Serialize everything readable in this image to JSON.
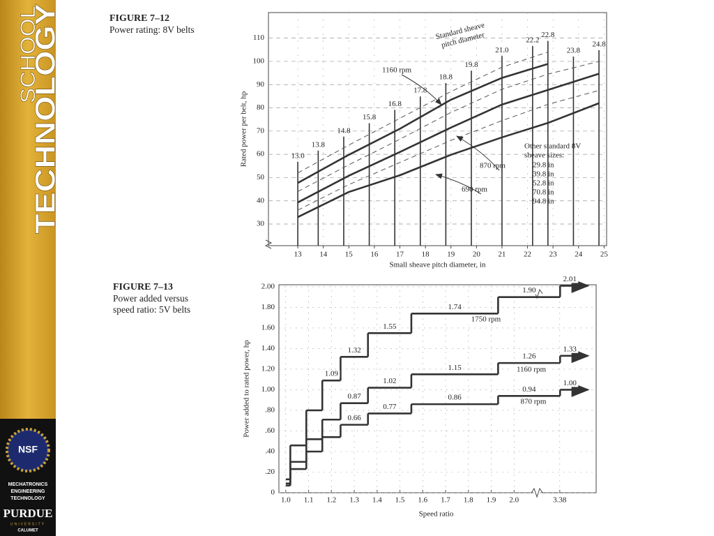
{
  "sidebar": {
    "school": "SCHOOL",
    "technology": "TECHNOLOGY",
    "nsf": "NSF",
    "program": [
      "MECHATRONICS",
      "ENGINEERING",
      "TECHNOLOGY"
    ],
    "university": "PURDUE",
    "university_sub": "UNIVERSITY",
    "campus": "CALUMET"
  },
  "chart_data": [
    {
      "type": "line",
      "title": "FIGURE 7–12",
      "subtitle": [
        "Power rating: 8V belts"
      ],
      "x_label": "Small sheave pitch diameter, in",
      "y_label": "Rated power per belt, hp",
      "xlim": [
        11.85,
        25.1
      ],
      "ylim": [
        20.7,
        121
      ],
      "xticks": [
        13,
        14,
        15,
        16,
        17,
        18,
        19,
        20,
        21,
        22,
        23,
        24,
        25
      ],
      "yticks": [
        30,
        40,
        50,
        60,
        70,
        80,
        90,
        100,
        110
      ],
      "grid": true,
      "y_axis_break": true,
      "x": [
        13,
        15,
        17,
        19,
        21,
        22.8,
        24.8
      ],
      "series": [
        {
          "name": "1160 rpm",
          "color": "#333333",
          "dash": false,
          "values": [
            47.7,
            59.8,
            71,
            83.5,
            92.9,
            98.9,
            null
          ]
        },
        {
          "name": "870 rpm",
          "color": "#333333",
          "dash": false,
          "values": [
            39.3,
            50.8,
            61,
            71.5,
            81.4,
            87.7,
            94.7
          ]
        },
        {
          "name": "690 rpm",
          "color": "#333333",
          "dash": false,
          "values": [
            33,
            43.8,
            51,
            59.8,
            67.3,
            73.5,
            82
          ]
        },
        {
          "color": "#555555",
          "dash": true,
          "values": [
            52,
            64,
            75.5,
            87,
            97.5,
            104,
            null
          ]
        },
        {
          "color": "#555555",
          "dash": true,
          "values": [
            44,
            55.5,
            66.5,
            78,
            88,
            94.5,
            100
          ]
        },
        {
          "color": "#555555",
          "dash": true,
          "values": [
            36,
            47,
            56.5,
            66,
            74.5,
            81.5,
            87.5
          ]
        }
      ],
      "standard_diameters": [
        {
          "value": 13,
          "label": "13.0"
        },
        13.8,
        14.8,
        15.8,
        16.8,
        17.8,
        18.8,
        19.8,
        {
          "value": 21,
          "label": "21.0"
        },
        22.2,
        22.8,
        23.8,
        24.8
      ],
      "annotations": {
        "standard_label": [
          "Standard sheave",
          "pitch diameter"
        ],
        "other_sizes_title": [
          "Other standard 8V",
          "sheave sizes:"
        ],
        "other_sizes": [
          "29.8 in",
          "39.8 in",
          "52.8 in",
          "70.8 in",
          "94.8 in"
        ]
      }
    },
    {
      "type": "step",
      "title": "FIGURE 7–13",
      "subtitle": [
        "Power added versus",
        "speed ratio: 5V belts"
      ],
      "x_label": "Speed ratio",
      "y_label": "Power added to rated power, hp",
      "xlim": [
        0.97,
        4.48
      ],
      "ylim": [
        0,
        2.02
      ],
      "x_axis_break": true,
      "xticks": [
        {
          "value": 1,
          "label": "1.0"
        },
        1.1,
        1.2,
        1.3,
        1.4,
        1.5,
        1.6,
        1.7,
        1.8,
        1.9,
        {
          "value": 2,
          "label": "2.0"
        },
        3.38
      ],
      "yticks": [
        0,
        {
          "value": 0.2,
          "label": ".20"
        },
        {
          "value": 0.4,
          "label": ".40"
        },
        {
          "value": 0.6,
          "label": ".60"
        },
        {
          "value": 0.8,
          "label": ".80"
        },
        {
          "value": 1,
          "label": "1.00"
        },
        {
          "value": 1.2,
          "label": "1.20"
        },
        {
          "value": 1.4,
          "label": "1.40"
        },
        {
          "value": 1.6,
          "label": "1.60"
        },
        {
          "value": 1.8,
          "label": "1.80"
        },
        {
          "value": 2,
          "label": "2.00"
        }
      ],
      "x": [
        1.0,
        1.02,
        1.09,
        1.16,
        1.24,
        1.36,
        1.55,
        1.93,
        3.39
      ],
      "series": [
        {
          "name": "1750 rpm",
          "color": "#333333",
          "values": [
            0.13,
            0.46,
            0.8,
            1.09,
            1.32,
            1.55,
            1.74,
            1.9,
            2.01
          ],
          "value_labels": [
            null,
            null,
            null,
            "1.09",
            "1.32",
            "1.55",
            "1.74",
            "1.90",
            "2.01"
          ]
        },
        {
          "name": "1160 rpm",
          "color": "#333333",
          "values": [
            0.09,
            0.3,
            0.52,
            0.71,
            0.87,
            1.02,
            1.15,
            1.26,
            1.33
          ],
          "value_labels": [
            null,
            null,
            null,
            null,
            "0.87",
            "1.02",
            "1.15",
            "1.26",
            "1.33"
          ]
        },
        {
          "name": "870 rpm",
          "color": "#333333",
          "values": [
            0.07,
            0.23,
            0.4,
            0.54,
            0.66,
            0.77,
            0.86,
            0.94,
            1.0
          ],
          "value_labels": [
            null,
            null,
            null,
            null,
            "0.66",
            "0.77",
            "0.86",
            "0.94",
            "1.00"
          ]
        }
      ]
    }
  ]
}
